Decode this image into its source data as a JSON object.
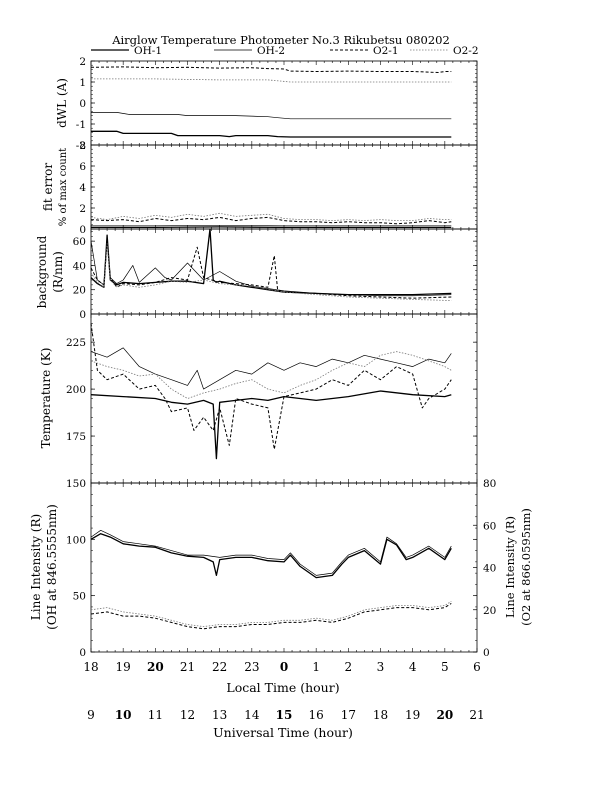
{
  "title": "Airglow Temperature Photometer No.3   Rikubetsu   080202",
  "legend": [
    {
      "name": "OH-1",
      "style": "solid-thick"
    },
    {
      "name": "OH-2",
      "style": "solid-thin"
    },
    {
      "name": "O2-1",
      "style": "dashed"
    },
    {
      "name": "O2-2",
      "style": "dotted-gray"
    }
  ],
  "xaxis_local": {
    "label": "Local Time (hour)",
    "ticks": [
      "18",
      "19",
      "20",
      "21",
      "22",
      "23",
      "0",
      "1",
      "2",
      "3",
      "4",
      "5",
      "6"
    ]
  },
  "xaxis_ut": {
    "label": "Universal Time (hour)",
    "ticks": [
      "9",
      "10",
      "11",
      "12",
      "13",
      "14",
      "15",
      "16",
      "17",
      "18",
      "19",
      "20",
      "21"
    ]
  },
  "panels": [
    {
      "id": "dwl",
      "ylabel": [
        "dWL (A)"
      ],
      "yticks": [
        "2",
        "1",
        "0",
        "-1",
        "-2"
      ]
    },
    {
      "id": "fit",
      "ylabel": [
        "fit error",
        "% of max count"
      ],
      "yticks": [
        "8",
        "6",
        "4",
        "2",
        "0"
      ]
    },
    {
      "id": "bg",
      "ylabel": [
        "background",
        "(R/nm)"
      ],
      "yticks": [
        "60",
        "40",
        "20",
        "0"
      ]
    },
    {
      "id": "temp",
      "ylabel": [
        "Temperature (K)"
      ],
      "yticks": [
        "225",
        "200",
        "175"
      ]
    },
    {
      "id": "int",
      "ylabel": [
        "Line Intensity (R)",
        "(OH at 846.5555nm)"
      ],
      "ylabel_right": [
        "Line Intensity (R)",
        "(O2 at 866.0595nm)"
      ],
      "yticks": [
        "150",
        "100",
        "50",
        "0"
      ],
      "yticks_right": [
        "80",
        "60",
        "40",
        "20",
        "0"
      ]
    }
  ],
  "chart_data": [
    {
      "type": "line",
      "panel": "dwl",
      "ylabel": "dWL (A)",
      "ylim": [
        -2,
        2
      ],
      "xlim": [
        18,
        30
      ],
      "series": [
        {
          "name": "OH-1",
          "x": [
            18.0,
            18.8,
            19.0,
            20.5,
            20.7,
            21.5,
            22.0,
            22.3,
            22.5,
            23.5,
            23.8,
            24.2,
            26.0,
            28.0,
            29.2
          ],
          "y": [
            -1.35,
            -1.35,
            -1.45,
            -1.45,
            -1.55,
            -1.55,
            -1.55,
            -1.6,
            -1.55,
            -1.55,
            -1.6,
            -1.62,
            -1.62,
            -1.62,
            -1.62
          ]
        },
        {
          "name": "OH-2",
          "x": [
            18.0,
            18.8,
            19.2,
            20.7,
            21.0,
            22.5,
            23.5,
            23.8,
            24.2,
            26.0,
            28.0,
            29.2
          ],
          "y": [
            -0.45,
            -0.45,
            -0.55,
            -0.55,
            -0.6,
            -0.6,
            -0.65,
            -0.7,
            -0.75,
            -0.75,
            -0.75,
            -0.75
          ]
        },
        {
          "name": "O2-1",
          "x": [
            18.0,
            19.0,
            20.0,
            21.0,
            22.0,
            23.0,
            23.5,
            24.0,
            24.2,
            25.0,
            26.0,
            27.0,
            28.0,
            28.8,
            29.0,
            29.2
          ],
          "y": [
            1.7,
            1.72,
            1.68,
            1.7,
            1.66,
            1.68,
            1.64,
            1.62,
            1.52,
            1.5,
            1.52,
            1.5,
            1.5,
            1.45,
            1.5,
            1.5
          ]
        },
        {
          "name": "O2-2",
          "x": [
            18.0,
            19.0,
            20.0,
            22.0,
            23.5,
            24.2,
            26.0,
            28.0,
            29.2
          ],
          "y": [
            1.15,
            1.15,
            1.15,
            1.1,
            1.1,
            1.0,
            1.0,
            1.0,
            1.0
          ]
        }
      ]
    },
    {
      "type": "line",
      "panel": "fit",
      "ylabel": "fit error % of max count",
      "ylim": [
        0,
        8
      ],
      "xlim": [
        18,
        30
      ],
      "series": [
        {
          "name": "OH-1",
          "x": [
            18,
            20,
            22,
            24,
            26,
            28,
            29.2
          ],
          "y": [
            0.15,
            0.15,
            0.2,
            0.15,
            0.15,
            0.15,
            0.15
          ]
        },
        {
          "name": "OH-2",
          "x": [
            18,
            20,
            22,
            24,
            26,
            28,
            29.2
          ],
          "y": [
            0.3,
            0.3,
            0.35,
            0.3,
            0.3,
            0.3,
            0.3
          ]
        },
        {
          "name": "O2-1",
          "x": [
            18,
            18.5,
            19,
            19.5,
            20,
            20.5,
            21,
            21.5,
            22,
            22.5,
            23,
            23.5,
            24,
            24.5,
            25,
            25.5,
            26,
            26.5,
            27,
            27.5,
            28,
            28.5,
            29,
            29.2
          ],
          "y": [
            0.9,
            0.8,
            0.9,
            0.7,
            1.0,
            0.8,
            1.0,
            0.9,
            1.1,
            0.8,
            1.0,
            1.1,
            0.8,
            0.7,
            0.7,
            0.6,
            0.7,
            0.6,
            0.6,
            0.5,
            0.6,
            0.8,
            0.6,
            0.7
          ]
        },
        {
          "name": "O2-2",
          "x": [
            18,
            18.5,
            19,
            19.5,
            20,
            20.5,
            21,
            21.5,
            22,
            22.5,
            23,
            23.5,
            24,
            24.5,
            25,
            25.5,
            26,
            26.5,
            27,
            27.5,
            28,
            28.5,
            29,
            29.2
          ],
          "y": [
            1.1,
            0.9,
            1.2,
            1.0,
            1.3,
            1.1,
            1.4,
            1.2,
            1.5,
            1.2,
            1.3,
            1.4,
            1.0,
            0.9,
            0.9,
            0.8,
            0.9,
            0.8,
            0.9,
            0.8,
            0.8,
            1.0,
            0.9,
            0.9
          ]
        }
      ]
    },
    {
      "type": "line",
      "panel": "bg",
      "ylabel": "background (R/nm)",
      "ylim": [
        0,
        70
      ],
      "xlim": [
        18,
        30
      ],
      "series": [
        {
          "name": "OH-1",
          "x": [
            18.0,
            18.2,
            18.4,
            18.5,
            18.6,
            18.8,
            19.0,
            19.5,
            20.0,
            20.5,
            21.0,
            21.5,
            21.7,
            21.8,
            21.9,
            22.0,
            22.5,
            23.0,
            23.5,
            24.0,
            25.0,
            26.0,
            27.0,
            28.0,
            29.2
          ],
          "y": [
            30,
            25,
            22,
            65,
            28,
            24,
            26,
            25,
            26,
            27,
            27,
            25,
            70,
            28,
            26,
            27,
            24,
            22,
            20,
            18,
            17,
            16,
            16,
            16,
            17
          ]
        },
        {
          "name": "OH-2",
          "x": [
            18.0,
            18.2,
            18.4,
            18.5,
            18.6,
            18.8,
            19.0,
            19.3,
            19.5,
            20.0,
            20.3,
            20.5,
            21.0,
            21.5,
            22.0,
            22.5,
            23.0,
            24.0,
            25.0,
            26.0,
            27.0,
            28.0,
            29.2
          ],
          "y": [
            60,
            28,
            24,
            60,
            30,
            25,
            28,
            40,
            26,
            38,
            30,
            28,
            42,
            28,
            35,
            27,
            23,
            19,
            17,
            16,
            15,
            15,
            16
          ]
        },
        {
          "name": "O2-1",
          "x": [
            18.0,
            18.2,
            18.4,
            18.5,
            18.6,
            18.8,
            19.0,
            19.5,
            20.0,
            20.5,
            21.0,
            21.3,
            21.5,
            22.0,
            22.5,
            23.0,
            23.5,
            23.7,
            23.8,
            24.0,
            25.0,
            26.0,
            27.0,
            28.0,
            29.2
          ],
          "y": [
            38,
            28,
            24,
            62,
            30,
            22,
            25,
            24,
            26,
            30,
            28,
            55,
            30,
            26,
            25,
            24,
            22,
            48,
            20,
            18,
            17,
            15,
            14,
            13,
            14
          ]
        },
        {
          "name": "O2-2",
          "x": [
            18.0,
            18.2,
            18.4,
            18.5,
            18.6,
            18.8,
            19.0,
            19.5,
            20.0,
            20.5,
            21.0,
            21.5,
            22.0,
            22.5,
            23.0,
            24.0,
            25.0,
            26.0,
            27.0,
            28.0,
            29.2
          ],
          "y": [
            34,
            26,
            22,
            58,
            28,
            22,
            24,
            22,
            24,
            27,
            26,
            28,
            25,
            24,
            23,
            18,
            16,
            14,
            13,
            12,
            11
          ]
        }
      ]
    },
    {
      "type": "line",
      "panel": "temp",
      "ylabel": "Temperature (K)",
      "ylim": [
        150,
        240
      ],
      "xlim": [
        18,
        30
      ],
      "series": [
        {
          "name": "OH-1",
          "x": [
            18.0,
            19.0,
            20.0,
            20.5,
            21.0,
            21.5,
            21.8,
            21.9,
            22.0,
            22.5,
            23.0,
            23.5,
            24.0,
            25.0,
            26.0,
            27.0,
            28.0,
            29.0,
            29.2
          ],
          "y": [
            197,
            196,
            195,
            193,
            192,
            194,
            192,
            163,
            193,
            194,
            195,
            194,
            196,
            194,
            196,
            199,
            197,
            196,
            197
          ]
        },
        {
          "name": "OH-2",
          "x": [
            18.0,
            18.5,
            19.0,
            19.5,
            20.0,
            20.5,
            21.0,
            21.3,
            21.5,
            22.0,
            22.5,
            23.0,
            23.5,
            24.0,
            24.5,
            25.0,
            25.5,
            26.0,
            26.5,
            27.0,
            27.5,
            28.0,
            28.5,
            29.0,
            29.2
          ],
          "y": [
            220,
            217,
            222,
            212,
            208,
            205,
            202,
            210,
            200,
            205,
            210,
            208,
            214,
            210,
            214,
            212,
            216,
            214,
            218,
            216,
            214,
            212,
            216,
            214,
            219
          ]
        },
        {
          "name": "O2-1",
          "x": [
            18.0,
            18.2,
            18.5,
            19.0,
            19.5,
            20.0,
            20.3,
            20.5,
            21.0,
            21.2,
            21.5,
            21.8,
            22.0,
            22.3,
            22.5,
            23.0,
            23.5,
            23.7,
            24.0,
            24.5,
            25.0,
            25.5,
            26.0,
            26.5,
            27.0,
            27.5,
            28.0,
            28.3,
            28.5,
            29.0,
            29.2
          ],
          "y": [
            235,
            210,
            205,
            208,
            200,
            202,
            195,
            188,
            190,
            178,
            185,
            178,
            190,
            170,
            195,
            192,
            190,
            168,
            196,
            198,
            200,
            205,
            202,
            210,
            205,
            212,
            208,
            190,
            195,
            200,
            205
          ]
        },
        {
          "name": "O2-2",
          "x": [
            18.0,
            18.5,
            19.0,
            19.5,
            20.0,
            20.5,
            21.0,
            21.5,
            22.0,
            22.5,
            23.0,
            23.5,
            24.0,
            24.5,
            25.0,
            25.5,
            26.0,
            26.5,
            27.0,
            27.5,
            28.0,
            28.5,
            29.0,
            29.2
          ],
          "y": [
            215,
            212,
            210,
            207,
            208,
            200,
            195,
            198,
            200,
            203,
            205,
            200,
            198,
            202,
            205,
            210,
            214,
            212,
            218,
            220,
            218,
            215,
            212,
            210
          ]
        }
      ]
    },
    {
      "type": "line",
      "panel": "int",
      "ylabel": "Line Intensity (R) (OH at 846.5555nm)",
      "ylim": [
        0,
        150
      ],
      "ylim_right": [
        0,
        80
      ],
      "xlim": [
        18,
        30
      ],
      "series": [
        {
          "name": "OH-1",
          "axis": "left",
          "x": [
            18.0,
            18.3,
            18.6,
            19.0,
            19.5,
            20.0,
            20.5,
            21.0,
            21.5,
            21.8,
            21.9,
            22.0,
            22.5,
            23.0,
            23.5,
            24.0,
            24.2,
            24.5,
            25.0,
            25.5,
            25.8,
            26.0,
            26.5,
            27.0,
            27.2,
            27.5,
            27.8,
            28.0,
            28.5,
            29.0,
            29.2
          ],
          "y": [
            100,
            105,
            102,
            96,
            94,
            93,
            88,
            85,
            84,
            80,
            68,
            82,
            84,
            84,
            81,
            80,
            86,
            76,
            66,
            68,
            78,
            84,
            90,
            78,
            100,
            95,
            82,
            84,
            92,
            82,
            92
          ]
        },
        {
          "name": "OH-2",
          "axis": "left",
          "x": [
            18.0,
            18.3,
            18.6,
            19.0,
            19.5,
            20.0,
            20.5,
            21.0,
            21.5,
            22.0,
            22.5,
            23.0,
            23.5,
            24.0,
            24.2,
            24.5,
            25.0,
            25.5,
            25.8,
            26.0,
            26.5,
            27.0,
            27.2,
            27.5,
            27.8,
            28.0,
            28.5,
            29.0,
            29.2
          ],
          "y": [
            102,
            108,
            104,
            98,
            96,
            94,
            90,
            86,
            86,
            84,
            86,
            86,
            83,
            82,
            88,
            78,
            68,
            70,
            80,
            86,
            92,
            80,
            102,
            96,
            84,
            86,
            94,
            84,
            94
          ]
        },
        {
          "name": "O2-1",
          "axis": "right",
          "x": [
            18.0,
            18.5,
            19.0,
            19.5,
            20.0,
            20.5,
            21.0,
            21.5,
            22.0,
            22.5,
            23.0,
            23.5,
            24.0,
            24.5,
            25.0,
            25.5,
            26.0,
            26.5,
            27.0,
            27.5,
            28.0,
            28.5,
            29.0,
            29.2
          ],
          "y": [
            18,
            19,
            17,
            17,
            16,
            14,
            12,
            11,
            12,
            12,
            13,
            13,
            14,
            14,
            15,
            14,
            16,
            19,
            20,
            21,
            21,
            20,
            21,
            23
          ]
        },
        {
          "name": "O2-2",
          "axis": "right",
          "x": [
            18.0,
            18.5,
            19.0,
            19.5,
            20.0,
            20.5,
            21.0,
            21.5,
            22.0,
            22.5,
            23.0,
            23.5,
            24.0,
            24.5,
            25.0,
            25.5,
            26.0,
            26.5,
            27.0,
            27.5,
            28.0,
            28.5,
            29.0,
            29.2
          ],
          "y": [
            20,
            21,
            19,
            18,
            17,
            15,
            13,
            12,
            13,
            13,
            14,
            14,
            15,
            15,
            16,
            15,
            17,
            20,
            21,
            22,
            22,
            21,
            22,
            24
          ]
        }
      ]
    }
  ]
}
